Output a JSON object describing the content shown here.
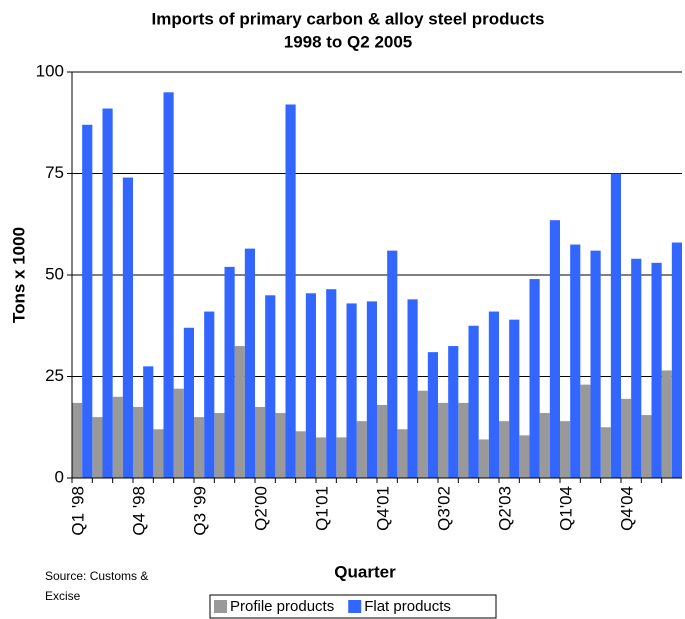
{
  "chart_data": {
    "type": "bar",
    "title": "Imports of primary carbon  & alloy steel products",
    "subtitle": "1998 to Q2 2005",
    "y_label": "Tons x 1000",
    "x_label": "Quarter",
    "source": "Source: Customs & Excise",
    "categories": [
      "Q1 '98",
      null,
      null,
      "Q4 '98",
      null,
      null,
      "Q3 '99",
      null,
      null,
      "Q2'00",
      null,
      null,
      "Q1'01",
      null,
      null,
      "Q4'01",
      null,
      null,
      "Q3'02",
      null,
      null,
      "Q2'03",
      null,
      null,
      "Q1'04",
      null,
      null,
      "Q4'04",
      null,
      null
    ],
    "series": [
      {
        "name": "Profile products",
        "color": "#999999",
        "values": [
          18.5,
          15,
          20,
          17.5,
          12,
          22,
          15,
          16,
          32.5,
          17.5,
          16,
          11.5,
          10,
          10,
          14,
          18,
          12,
          21.5,
          18.5,
          18.5,
          9.5,
          14,
          10.5,
          16,
          14,
          23,
          12.5,
          19.5,
          15.5,
          26.5
        ]
      },
      {
        "name": "Flat products",
        "color": "#3366ff",
        "values": [
          87,
          91,
          74,
          27.5,
          95,
          37,
          41,
          52,
          56.5,
          45,
          92,
          45.5,
          46.5,
          43,
          43.5,
          56,
          44,
          31,
          32.5,
          37.5,
          41,
          39,
          49,
          63.5,
          57.5,
          56,
          75,
          54,
          53,
          58
        ]
      }
    ],
    "ylim": [
      0,
      100
    ],
    "yticks": [
      0,
      25,
      50,
      75,
      100
    ],
    "grid": true
  }
}
